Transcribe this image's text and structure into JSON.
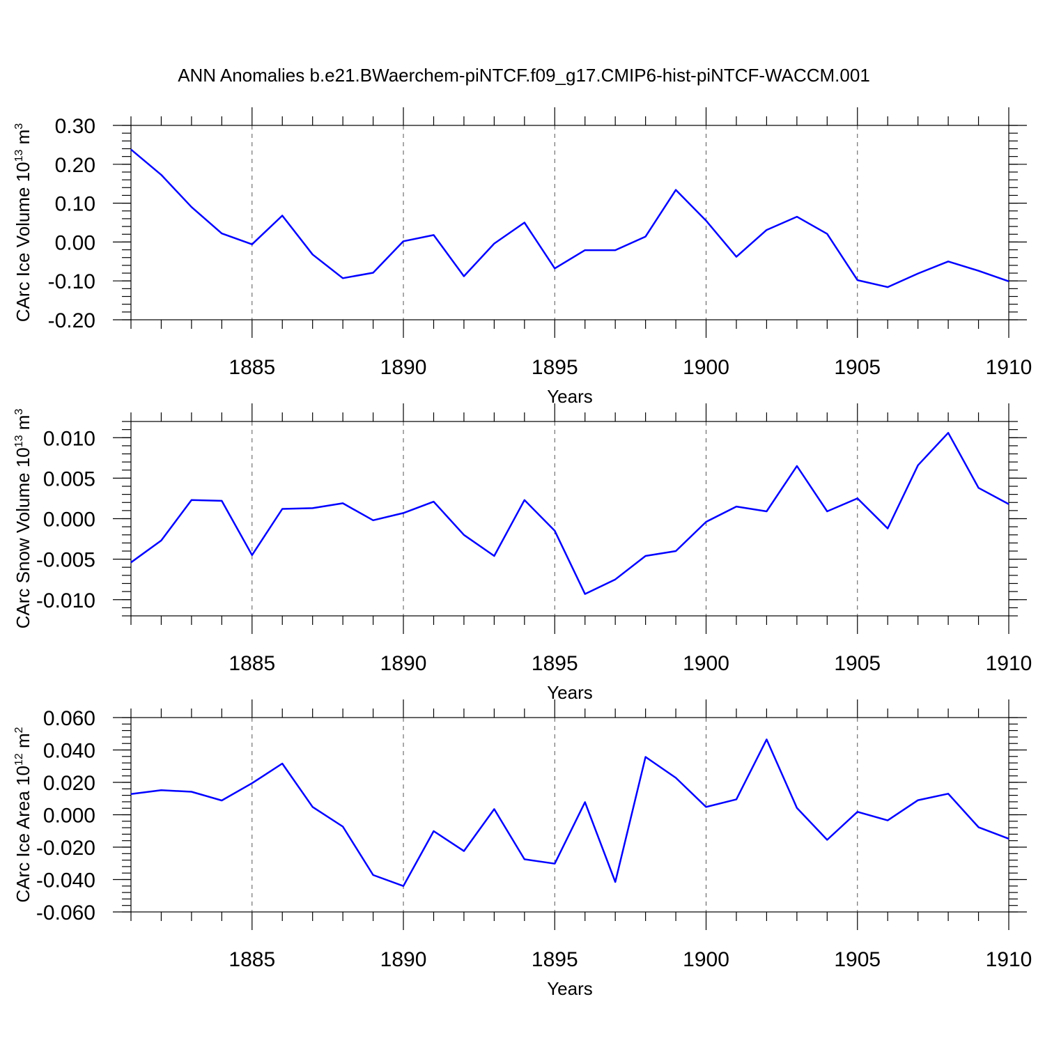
{
  "title": "ANN Anomalies b.e21.BWaerchem-piNTCF.f09_g17.CMIP6-hist-piNTCF-WACCM.001",
  "line_color": "#0000ff",
  "chart_data": [
    {
      "type": "line",
      "xlabel": "Years",
      "ylabel_text": "CArc Ice Volume 10",
      "ylabel_exp": "13",
      "ylabel_unit": " m",
      "ylabel_unit_exp": "3",
      "xlim": [
        1881,
        1910
      ],
      "ylim": [
        -0.2,
        0.3
      ],
      "x_ticks": [
        1885,
        1890,
        1895,
        1900,
        1905,
        1910
      ],
      "x_tick_labels": [
        "1885",
        "1890",
        "1895",
        "1900",
        "1905",
        "1910"
      ],
      "y_ticks": [
        -0.2,
        -0.1,
        0.0,
        0.1,
        0.2,
        0.3
      ],
      "y_tick_labels": [
        "-0.20",
        "-0.10",
        "0.00",
        "0.10",
        "0.20",
        "0.30"
      ],
      "y_minor_step": 0.02,
      "grid_x": true,
      "x": [
        1881,
        1882,
        1883,
        1884,
        1885,
        1886,
        1887,
        1888,
        1889,
        1890,
        1891,
        1892,
        1893,
        1894,
        1895,
        1896,
        1897,
        1898,
        1899,
        1900,
        1901,
        1902,
        1903,
        1904,
        1905,
        1906,
        1907,
        1908,
        1909,
        1910
      ],
      "y": [
        0.238,
        0.173,
        0.09,
        0.022,
        -0.006,
        0.068,
        -0.032,
        -0.093,
        -0.079,
        0.002,
        0.018,
        -0.088,
        -0.004,
        0.05,
        -0.068,
        -0.021,
        -0.021,
        0.014,
        0.134,
        0.055,
        -0.038,
        0.031,
        0.065,
        0.021,
        -0.098,
        -0.116,
        -0.081,
        -0.05,
        -0.074,
        -0.101
      ]
    },
    {
      "type": "line",
      "xlabel": "Years",
      "ylabel_text": "CArc Snow Volume 10",
      "ylabel_exp": "13",
      "ylabel_unit": " m",
      "ylabel_unit_exp": "3",
      "xlim": [
        1881,
        1910
      ],
      "ylim": [
        -0.012,
        0.012
      ],
      "x_ticks": [
        1885,
        1890,
        1895,
        1900,
        1905,
        1910
      ],
      "x_tick_labels": [
        "1885",
        "1890",
        "1895",
        "1900",
        "1905",
        "1910"
      ],
      "y_ticks": [
        -0.01,
        -0.005,
        0.0,
        0.005,
        0.01
      ],
      "y_tick_labels": [
        "-0.010",
        "-0.005",
        "0.000",
        "0.005",
        "0.010"
      ],
      "y_minor_step": 0.001,
      "grid_x": true,
      "x": [
        1881,
        1882,
        1883,
        1884,
        1885,
        1886,
        1887,
        1888,
        1889,
        1890,
        1891,
        1892,
        1893,
        1894,
        1895,
        1896,
        1897,
        1898,
        1899,
        1900,
        1901,
        1902,
        1903,
        1904,
        1905,
        1906,
        1907,
        1908,
        1909,
        1910
      ],
      "y": [
        -0.0054,
        -0.0027,
        0.0023,
        0.0022,
        -0.0045,
        0.0012,
        0.0013,
        0.0019,
        -0.0002,
        0.0007,
        0.0021,
        -0.002,
        -0.0046,
        0.0023,
        -0.0015,
        -0.0093,
        -0.0075,
        -0.0046,
        -0.004,
        -0.0004,
        0.0015,
        0.0009,
        0.0065,
        0.0009,
        0.0025,
        -0.0012,
        0.0066,
        0.0106,
        0.0038,
        0.0018
      ]
    },
    {
      "type": "line",
      "xlabel": "Years",
      "ylabel_text": "CArc Ice Area 10",
      "ylabel_exp": "12",
      "ylabel_unit": " m",
      "ylabel_unit_exp": "2",
      "xlim": [
        1881,
        1910
      ],
      "ylim": [
        -0.06,
        0.06
      ],
      "x_ticks": [
        1885,
        1890,
        1895,
        1900,
        1905,
        1910
      ],
      "x_tick_labels": [
        "1885",
        "1890",
        "1895",
        "1900",
        "1905",
        "1910"
      ],
      "y_ticks": [
        -0.06,
        -0.04,
        -0.02,
        0.0,
        0.02,
        0.04,
        0.06
      ],
      "y_tick_labels": [
        "-0.060",
        "-0.040",
        "-0.020",
        "0.000",
        "0.020",
        "0.040",
        "0.060"
      ],
      "y_minor_step": 0.004,
      "grid_x": true,
      "x": [
        1881,
        1882,
        1883,
        1884,
        1885,
        1886,
        1887,
        1888,
        1889,
        1890,
        1891,
        1892,
        1893,
        1894,
        1895,
        1896,
        1897,
        1898,
        1899,
        1900,
        1901,
        1902,
        1903,
        1904,
        1905,
        1906,
        1907,
        1908,
        1909,
        1910
      ],
      "y": [
        0.0128,
        0.0152,
        0.0142,
        0.0088,
        0.0195,
        0.0316,
        0.0048,
        -0.0073,
        -0.0372,
        -0.044,
        -0.0101,
        -0.0224,
        0.0035,
        -0.0275,
        -0.0302,
        0.0078,
        -0.0415,
        0.0357,
        0.0228,
        0.0048,
        0.0095,
        0.0465,
        0.0042,
        -0.0155,
        0.0018,
        -0.0035,
        0.009,
        0.013,
        -0.0077,
        -0.0148
      ]
    }
  ]
}
